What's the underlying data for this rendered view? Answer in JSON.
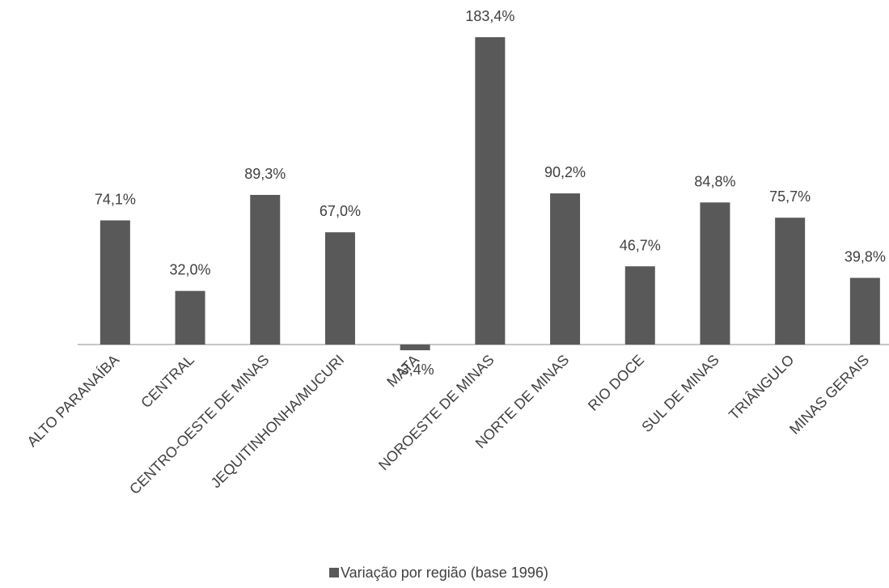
{
  "chart_data": {
    "type": "bar",
    "categories": [
      "ALTO PARANAÍBA",
      "CENTRAL",
      "CENTRO-OESTE DE MINAS",
      "JEQUITINHONHA/MUCURI",
      "MATA",
      "NOROESTE DE MINAS",
      "NORTE DE MINAS",
      "RIO DOCE",
      "SUL DE MINAS",
      "TRIÂNGULO",
      "MINAS GERAIS"
    ],
    "series": [
      {
        "name": "Variação por região (base 1996)",
        "color": "#595959",
        "values": [
          74.1,
          32.0,
          89.3,
          67.0,
          -3.4,
          183.4,
          90.2,
          46.7,
          84.8,
          75.7,
          39.8
        ],
        "value_labels": [
          "74,1%",
          "32,0%",
          "89,3%",
          "67,0%",
          "-3,4%",
          "183,4%",
          "90,2%",
          "46,7%",
          "84,8%",
          "75,7%",
          "39,8%"
        ]
      }
    ],
    "ylim": [
      -40,
      200
    ],
    "legend": "bottom"
  }
}
